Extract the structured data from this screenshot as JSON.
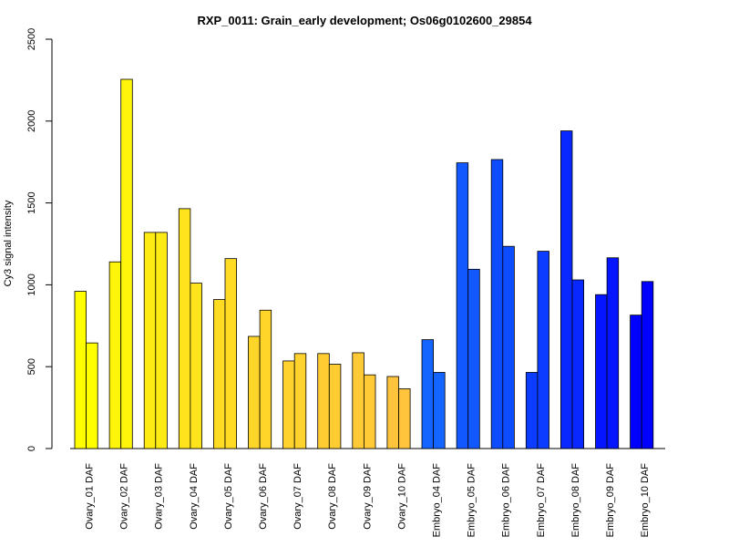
{
  "chart_data": {
    "type": "bar",
    "title": "RXP_0011: Grain_early development; Os06g0102600_29854",
    "ylabel": "Cy3 signal intensity",
    "xlabel": "",
    "ylim": [
      0,
      2500
    ],
    "yticks": [
      0,
      500,
      1000,
      1500,
      2000,
      2500
    ],
    "grid": false,
    "categories": [
      "Ovary_01 DAF",
      "Ovary_02 DAF",
      "Ovary_03 DAF",
      "Ovary_04 DAF",
      "Ovary_05 DAF",
      "Ovary_06 DAF",
      "Ovary_07 DAF",
      "Ovary_08 DAF",
      "Ovary_09 DAF",
      "Ovary_10 DAF",
      "Embryo_04 DAF",
      "Embryo_05 DAF",
      "Embryo_06 DAF",
      "Embryo_07 DAF",
      "Embryo_08 DAF",
      "Embryo_09 DAF",
      "Embryo_10 DAF"
    ],
    "colors": [
      "#FFFF00",
      "#FFF50A",
      "#FFEB14",
      "#FFE31C",
      "#FFDC23",
      "#FFD52A",
      "#FFD22D",
      "#FFCD32",
      "#FFCA35",
      "#FFC43B",
      "#1464FF",
      "#1158FF",
      "#0E4CFF",
      "#0B3CFF",
      "#0828FF",
      "#0515FF",
      "#0000FF"
    ],
    "series": [
      {
        "values": [
          960,
          1140,
          1320,
          1465,
          910,
          685,
          535,
          580,
          585,
          440,
          665,
          1745,
          1765,
          465,
          1940,
          940,
          815
        ]
      },
      {
        "values": [
          645,
          2255,
          1320,
          1010,
          1160,
          845,
          580,
          515,
          450,
          365,
          465,
          1095,
          1235,
          1205,
          1030,
          1165,
          1020
        ]
      }
    ]
  }
}
